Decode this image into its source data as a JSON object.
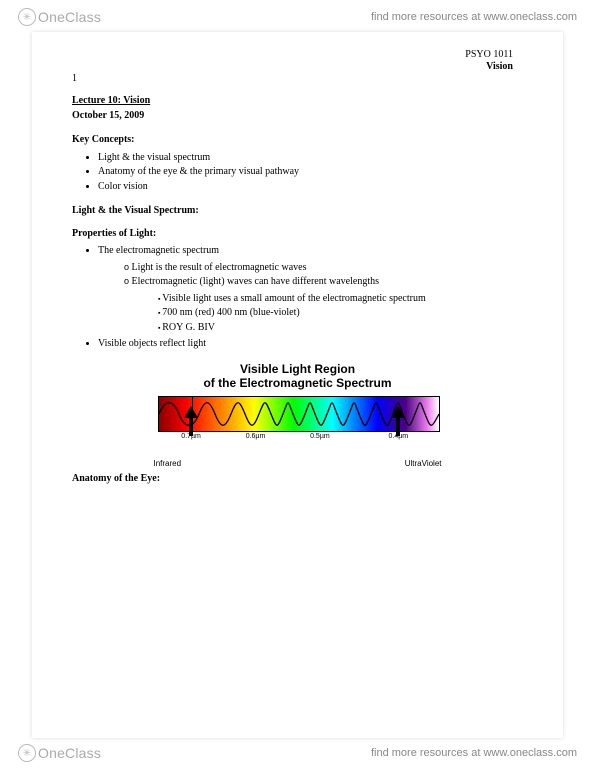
{
  "brand": {
    "logoText": "OneClass",
    "circleGlyph": "✳"
  },
  "header": {
    "tagline": "find more resources at www.oneclass.com"
  },
  "footer": {
    "tagline": "find more resources at www.oneclass.com"
  },
  "meta": {
    "course": "PSYO 1011",
    "subject": "Vision",
    "pageNumber": "1"
  },
  "lecture": {
    "title": "Lecture 10: Vision",
    "date": "October 15, 2009"
  },
  "sections": {
    "keyConcepts": {
      "heading": "Key Concepts:",
      "items": [
        "Light & the visual spectrum",
        "Anatomy of the eye & the primary visual pathway",
        "Color vision"
      ]
    },
    "lightHeading": "Light & the Visual Spectrum:",
    "propsHeading": "Properties of Light:",
    "props": {
      "top": [
        {
          "text": "The electromagnetic spectrum",
          "sub": [
            {
              "text": "Light is the result of electromagnetic waves"
            },
            {
              "text": "Electromagnetic (light) waves can have different wavelengths",
              "sub": [
                "Visible light uses a small amount of the electromagnetic spectrum",
                "700 nm (red)  400 nm (blue-violet)",
                "ROY G. BIV"
              ]
            }
          ]
        },
        {
          "text": "Visible objects reflect light"
        }
      ]
    },
    "anatomyHeading": "Anatomy of the Eye:"
  },
  "figure": {
    "titleLine1": "Visible Light Region",
    "titleLine2": "of the Electromagnetic Spectrum",
    "leftLabel": "Infrared",
    "rightLabel": "UltraViolet",
    "ticks": [
      {
        "pos": 12,
        "label": "0.7µm"
      },
      {
        "pos": 35,
        "label": "0.6µm"
      },
      {
        "pos": 58,
        "label": "0.5µm"
      },
      {
        "pos": 86,
        "label": "0.4µm"
      }
    ],
    "arrowLeftPct": 12,
    "arrowRightPct": 86,
    "barLinePct": 12,
    "colors": {
      "arrow": "#000000",
      "wave": "#000000",
      "border": "#000000"
    }
  }
}
